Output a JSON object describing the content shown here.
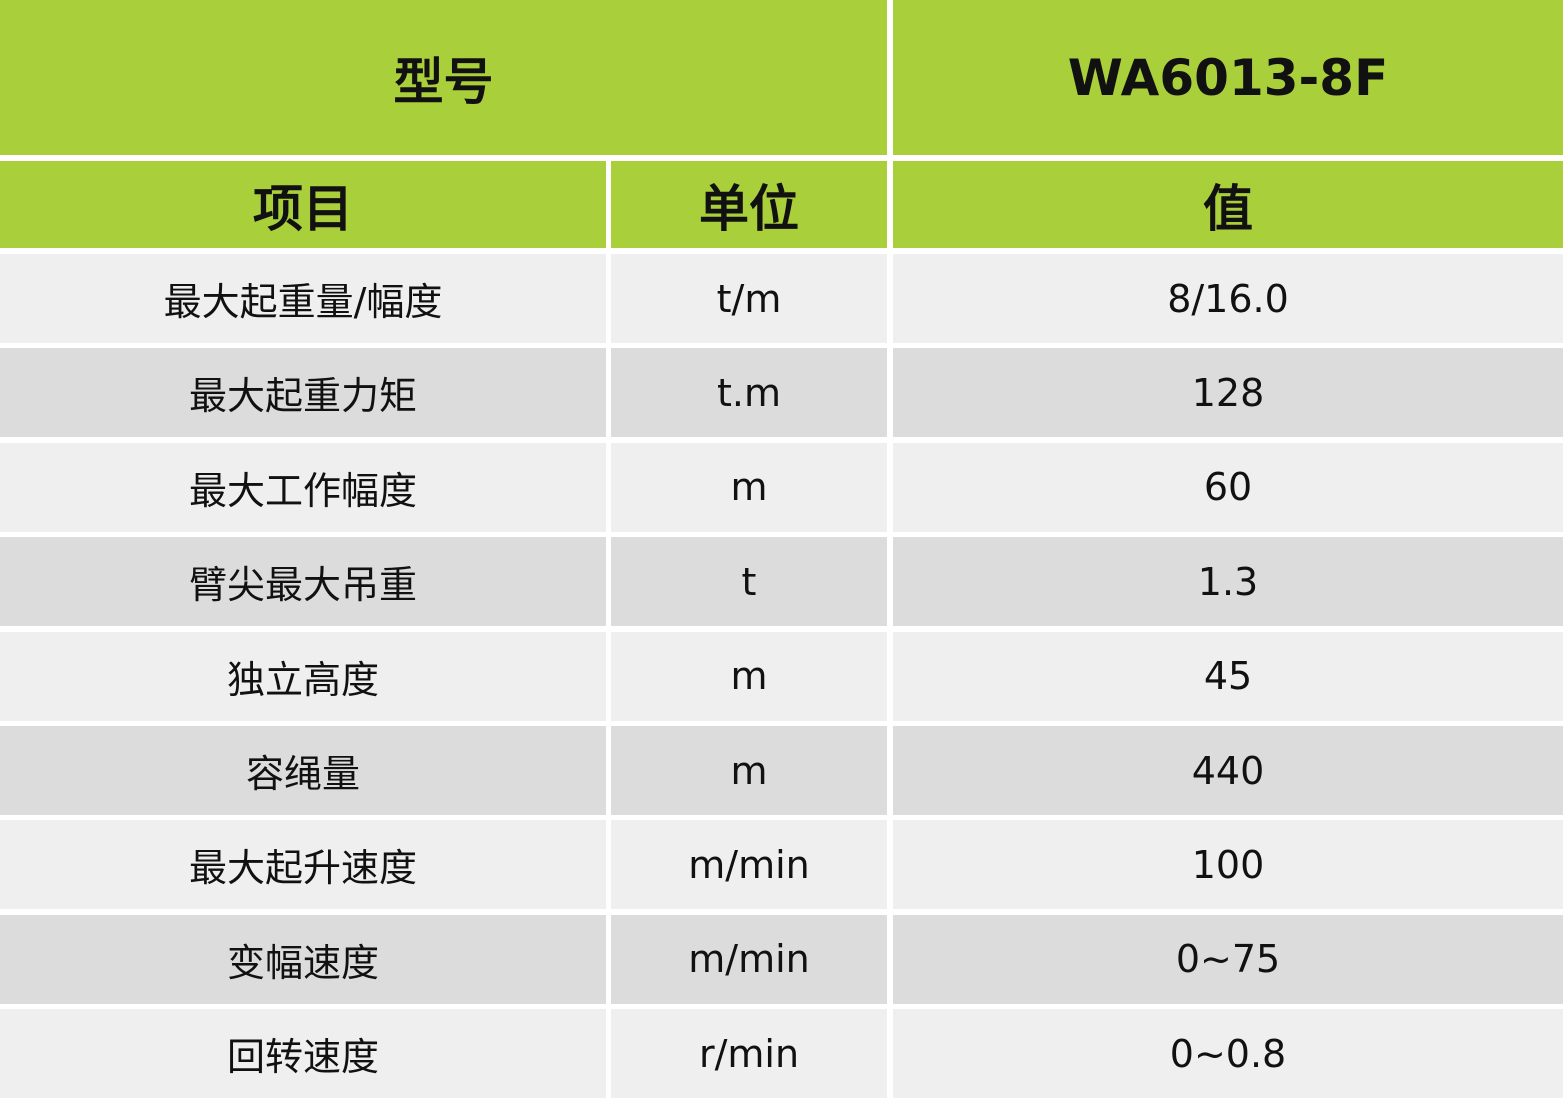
{
  "table": {
    "model_label": "型号",
    "model_value": "WA6013-8F",
    "headers": [
      "项目",
      "单位",
      "值"
    ],
    "rows": [
      [
        "最大起重量/幅度",
        "t/m",
        "8/16.0"
      ],
      [
        "最大起重力矩",
        "t.m",
        "128"
      ],
      [
        "最大工作幅度",
        "m",
        "60"
      ],
      [
        "臂尖最大吊重",
        "t",
        "1.3"
      ],
      [
        "独立高度",
        "m",
        "45"
      ],
      [
        "容绳量",
        "m",
        "440"
      ],
      [
        "最大起升速度",
        "m/min",
        "100"
      ],
      [
        "变幅速度",
        "m/min",
        "0~75"
      ],
      [
        "回转速度",
        "r/min",
        "0~0.8"
      ]
    ]
  }
}
